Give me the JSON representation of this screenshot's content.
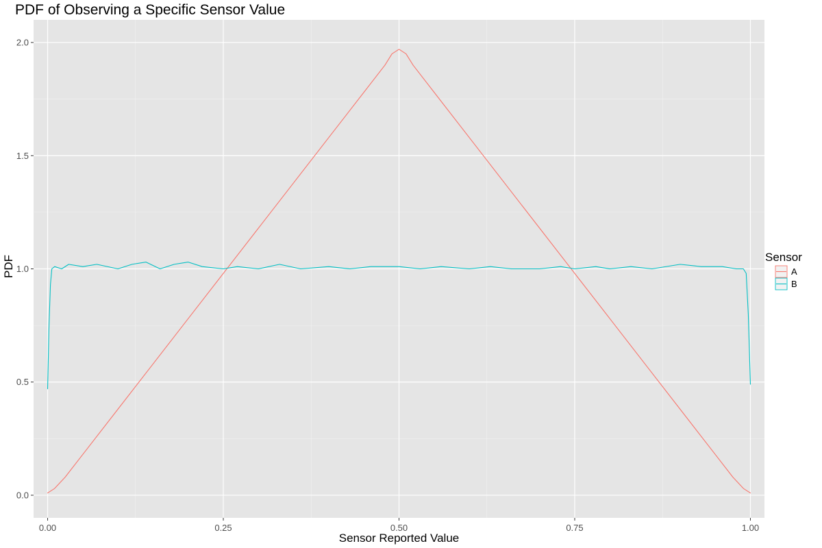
{
  "chart_data": {
    "type": "line",
    "title": "PDF of Observing a Specific Sensor Value",
    "xlabel": "Sensor Reported Value",
    "ylabel": "PDF",
    "xlim": [
      -0.02,
      1.02
    ],
    "ylim": [
      -0.1,
      2.1
    ],
    "x_ticks": [
      0.0,
      0.25,
      0.5,
      0.75,
      1.0
    ],
    "x_tick_labels": [
      "0.00",
      "0.25",
      "0.50",
      "0.75",
      "1.00"
    ],
    "y_ticks": [
      0.0,
      0.5,
      1.0,
      1.5,
      2.0
    ],
    "y_tick_labels": [
      "0.0",
      "0.5",
      "1.0",
      "1.5",
      "2.0"
    ],
    "grid": true,
    "panel_background": "#e5e5e5",
    "legend": {
      "title": "Sensor",
      "position": "right",
      "entries": [
        "A",
        "B"
      ]
    },
    "series": [
      {
        "name": "A",
        "color": "#f8766d",
        "points": [
          [
            0.0,
            0.01
          ],
          [
            0.01,
            0.03
          ],
          [
            0.025,
            0.08
          ],
          [
            0.05,
            0.18
          ],
          [
            0.1,
            0.38
          ],
          [
            0.15,
            0.58
          ],
          [
            0.2,
            0.78
          ],
          [
            0.25,
            0.98
          ],
          [
            0.3,
            1.18
          ],
          [
            0.35,
            1.38
          ],
          [
            0.4,
            1.58
          ],
          [
            0.45,
            1.78
          ],
          [
            0.48,
            1.9
          ],
          [
            0.49,
            1.95
          ],
          [
            0.5,
            1.97
          ],
          [
            0.51,
            1.95
          ],
          [
            0.52,
            1.9
          ],
          [
            0.55,
            1.78
          ],
          [
            0.6,
            1.58
          ],
          [
            0.65,
            1.38
          ],
          [
            0.7,
            1.18
          ],
          [
            0.75,
            0.98
          ],
          [
            0.8,
            0.78
          ],
          [
            0.85,
            0.58
          ],
          [
            0.9,
            0.38
          ],
          [
            0.95,
            0.18
          ],
          [
            0.975,
            0.08
          ],
          [
            0.99,
            0.03
          ],
          [
            1.0,
            0.01
          ]
        ]
      },
      {
        "name": "B",
        "color": "#00bfc4",
        "points": [
          [
            0.0,
            0.47
          ],
          [
            0.002,
            0.75
          ],
          [
            0.004,
            0.93
          ],
          [
            0.006,
            1.0
          ],
          [
            0.01,
            1.01
          ],
          [
            0.02,
            1.0
          ],
          [
            0.03,
            1.02
          ],
          [
            0.05,
            1.01
          ],
          [
            0.07,
            1.02
          ],
          [
            0.1,
            1.0
          ],
          [
            0.12,
            1.02
          ],
          [
            0.14,
            1.03
          ],
          [
            0.16,
            1.0
          ],
          [
            0.18,
            1.02
          ],
          [
            0.2,
            1.03
          ],
          [
            0.22,
            1.01
          ],
          [
            0.25,
            1.0
          ],
          [
            0.27,
            1.01
          ],
          [
            0.3,
            1.0
          ],
          [
            0.33,
            1.02
          ],
          [
            0.36,
            1.0
          ],
          [
            0.4,
            1.01
          ],
          [
            0.43,
            1.0
          ],
          [
            0.46,
            1.01
          ],
          [
            0.5,
            1.01
          ],
          [
            0.53,
            1.0
          ],
          [
            0.56,
            1.01
          ],
          [
            0.6,
            1.0
          ],
          [
            0.63,
            1.01
          ],
          [
            0.66,
            1.0
          ],
          [
            0.7,
            1.0
          ],
          [
            0.73,
            1.01
          ],
          [
            0.75,
            1.0
          ],
          [
            0.78,
            1.01
          ],
          [
            0.8,
            1.0
          ],
          [
            0.83,
            1.01
          ],
          [
            0.86,
            1.0
          ],
          [
            0.9,
            1.02
          ],
          [
            0.93,
            1.01
          ],
          [
            0.96,
            1.01
          ],
          [
            0.98,
            1.0
          ],
          [
            0.99,
            1.0
          ],
          [
            0.994,
            0.98
          ],
          [
            0.997,
            0.8
          ],
          [
            1.0,
            0.49
          ]
        ]
      }
    ]
  }
}
